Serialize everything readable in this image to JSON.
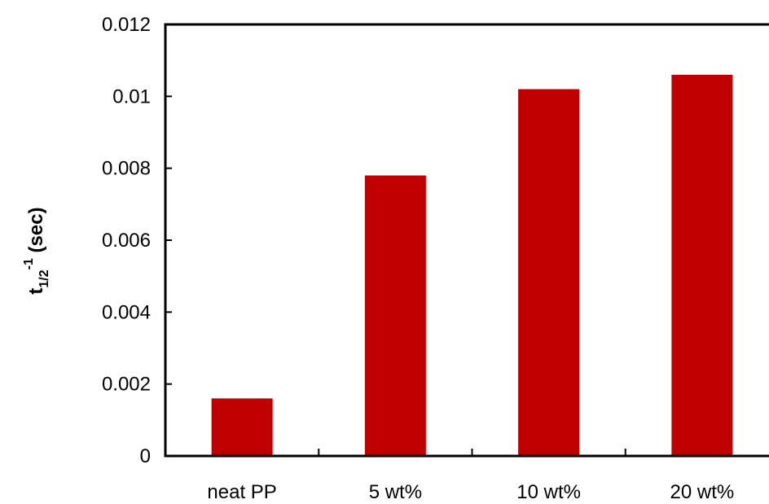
{
  "colors": {
    "bar": "#C00000",
    "axis": "#000000",
    "background": "#FFFFFF"
  },
  "chart_data": {
    "type": "bar",
    "title": "",
    "xlabel": "",
    "ylabel": {
      "base": "t",
      "subscript": "1/2",
      "superscript": "-1",
      "unit": " (sec)"
    },
    "categories": [
      "neat PP",
      "5 wt%",
      "10 wt%",
      "20 wt%"
    ],
    "values": [
      0.0016,
      0.0078,
      0.0102,
      0.0106
    ],
    "ylim": [
      0,
      0.012
    ],
    "yticks": [
      0,
      0.002,
      0.004,
      0.006,
      0.008,
      0.01,
      0.012
    ],
    "ytick_labels": [
      "0",
      "0.002",
      "0.004",
      "0.006",
      "0.008",
      "0.01",
      "0.012"
    ],
    "grid": false,
    "legend": "none"
  }
}
